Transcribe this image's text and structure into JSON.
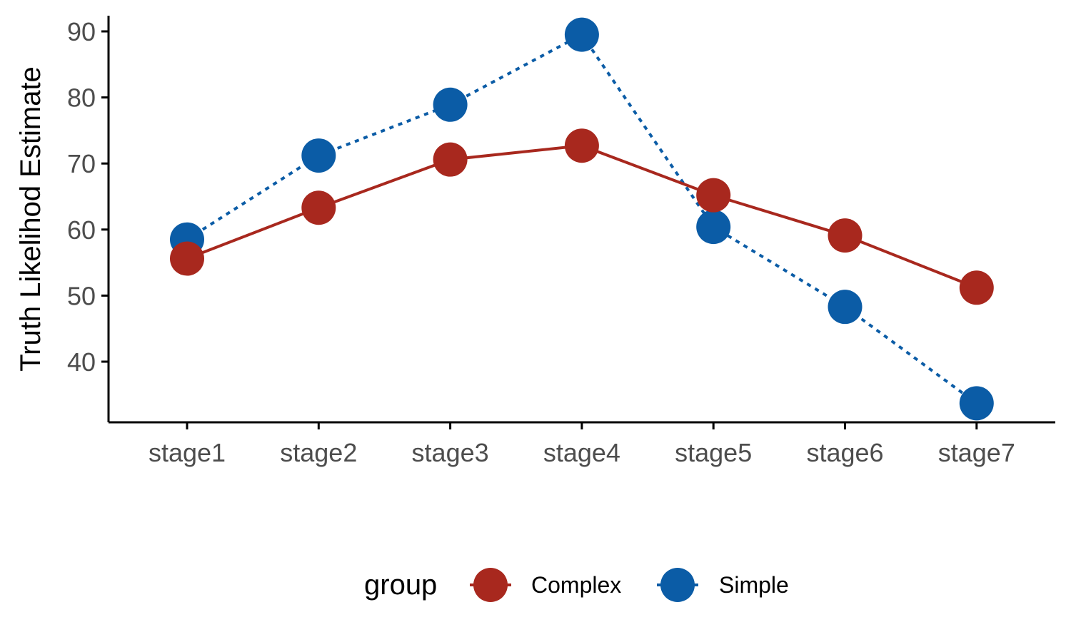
{
  "chart_data": {
    "type": "line",
    "title": "",
    "xlabel": "",
    "ylabel": "Truth Likelihod Estimate",
    "categories": [
      "stage1",
      "stage2",
      "stage3",
      "stage4",
      "stage5",
      "stage6",
      "stage7"
    ],
    "y_ticks": [
      40,
      50,
      60,
      70,
      80,
      90
    ],
    "ylim": [
      31,
      92
    ],
    "grid": false,
    "legend": {
      "title": "group",
      "position": "bottom"
    },
    "series": [
      {
        "name": "Complex",
        "color": "#A8281E",
        "line_style": "solid",
        "marker": "filled-circle",
        "values": [
          55.6,
          63.3,
          70.6,
          72.7,
          65.2,
          59.1,
          51.2
        ]
      },
      {
        "name": "Simple",
        "color": "#0B5CA6",
        "line_style": "dotted",
        "marker": "filled-circle",
        "values": [
          58.5,
          71.2,
          78.9,
          89.5,
          60.4,
          48.3,
          33.7
        ]
      }
    ]
  }
}
